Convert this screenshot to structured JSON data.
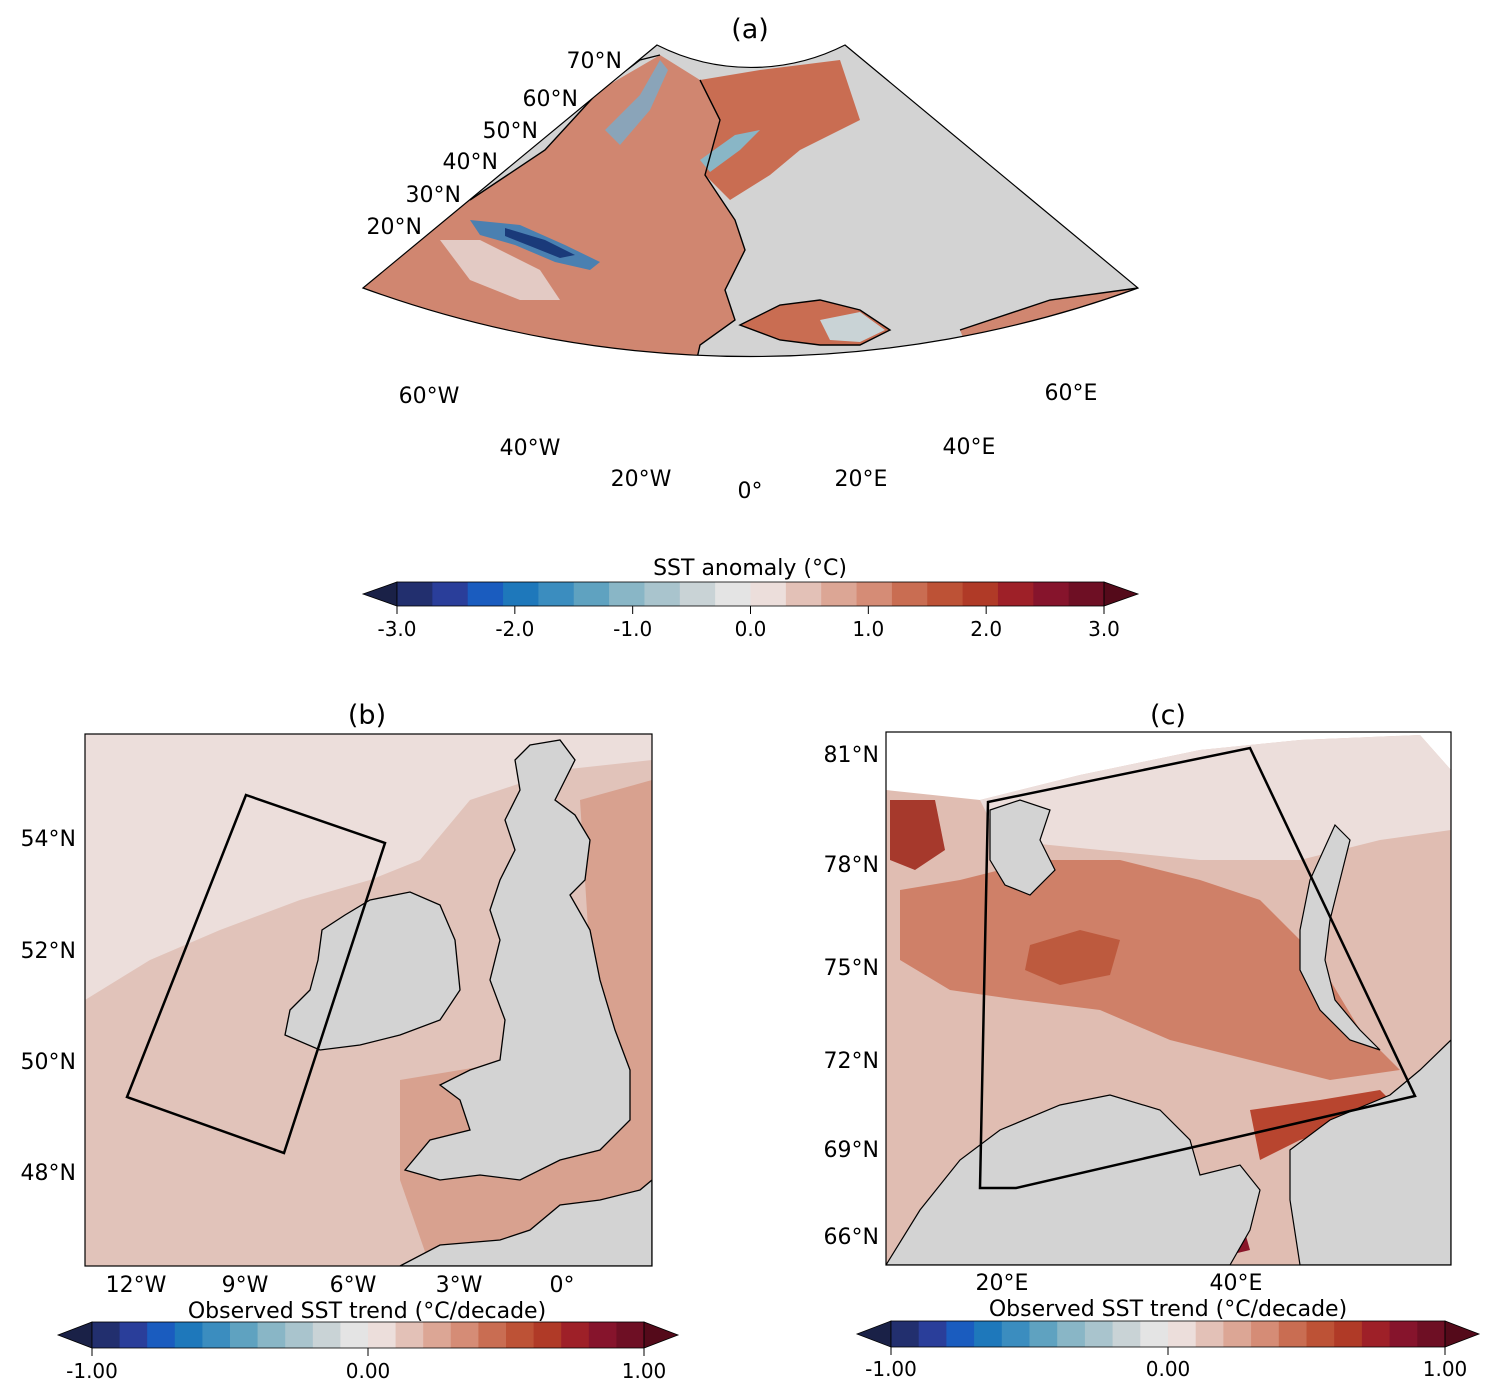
{
  "panels": [
    {
      "title": "(a)",
      "lat_labels": [
        "70°N",
        "60°N",
        "50°N",
        "40°N",
        "30°N",
        "20°N"
      ],
      "lon_labels": [
        "60°W",
        "40°W",
        "20°W",
        "0°",
        "20°E",
        "40°E",
        "60°E"
      ]
    },
    {
      "title": "(b)",
      "lat_labels": [
        "54°N",
        "52°N",
        "50°N",
        "48°N"
      ],
      "lon_labels": [
        "12°W",
        "9°W",
        "6°W",
        "3°W",
        "0°"
      ]
    },
    {
      "title": "(c)",
      "lat_labels": [
        "81°N",
        "78°N",
        "75°N",
        "72°N",
        "69°N",
        "66°N"
      ],
      "lon_labels": [
        "20°E",
        "40°E"
      ]
    }
  ],
  "colorbars": [
    {
      "label": "SST anomaly (°C)",
      "ticks": [
        "-3.0",
        "-2.0",
        "-1.0",
        "0.0",
        "1.0",
        "2.0",
        "3.0"
      ],
      "range": [
        -3.0,
        3.0
      ],
      "extend": "both"
    },
    {
      "label": "Observed SST trend (°C/decade)",
      "ticks": [
        "-1.00",
        "0.00",
        "1.00"
      ],
      "range": [
        -1.0,
        1.0
      ],
      "extend": "both"
    },
    {
      "label": "Observed SST trend (°C/decade)",
      "ticks": [
        "-1.00",
        "0.00",
        "1.00"
      ],
      "range": [
        -1.0,
        1.0
      ],
      "extend": "both"
    }
  ],
  "colors": {
    "land": "#d3d3d3",
    "diverging_palette": [
      "#1a2147",
      "#222f6e",
      "#2a3e9a",
      "#1a5cbf",
      "#1e78bb",
      "#3b8dbf",
      "#5fa2c0",
      "#89b6c6",
      "#a9c4cd",
      "#c9d3d6",
      "#e4e4e4",
      "#ecdedb",
      "#e3c1b7",
      "#dca695",
      "#d58c76",
      "#c96d52",
      "#bd5236",
      "#b03a27",
      "#9e2028",
      "#86142c",
      "#6e0f24",
      "#540a1a"
    ]
  }
}
